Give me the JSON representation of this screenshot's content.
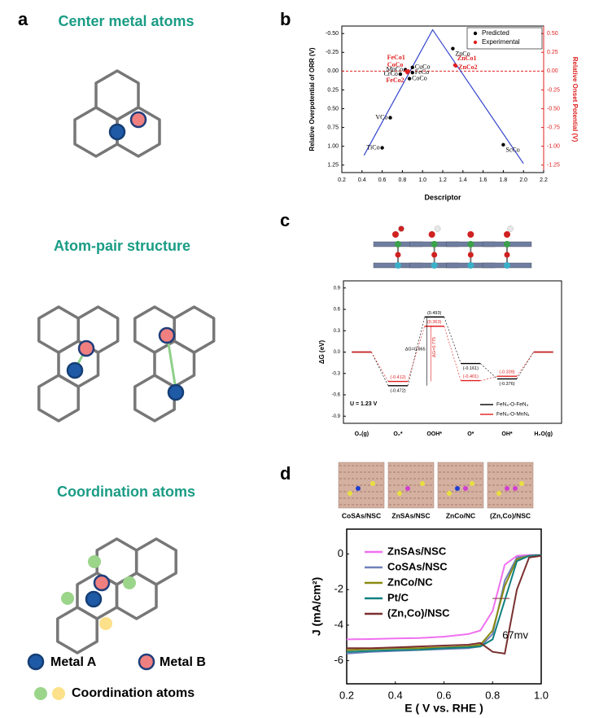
{
  "panel_labels": [
    "a",
    "b",
    "c",
    "d"
  ],
  "diagrams": {
    "titles": [
      "Center metal atoms",
      "Atom-pair structure",
      "Coordination atoms"
    ],
    "legend": [
      "Metal A",
      "Metal B",
      "Coordination atoms"
    ]
  },
  "chart_data": [
    {
      "type": "scatter",
      "xlabel": "Descriptor",
      "ylabel": "Relative Overpotential of ORR (V)",
      "y2label": "Relative Onset Potential (V)",
      "xlim": [
        0.2,
        2.2
      ],
      "xticks": [
        0.2,
        0.4,
        0.6,
        0.8,
        {
          "value": 1,
          "label": "1.0"
        },
        1.2,
        1.4,
        1.6,
        1.8,
        {
          "value": 2,
          "label": "2.0"
        },
        2.2
      ],
      "ylim": [
        1.35,
        -0.6
      ],
      "yticks": [
        {
          "value": -0.5,
          "label": "-0.50"
        },
        {
          "value": -0.25,
          "label": "-0.25"
        },
        {
          "value": 0,
          "label": "0.00"
        },
        {
          "value": 0.25,
          "label": "0.25"
        },
        {
          "value": 0.5,
          "label": "0.50"
        },
        {
          "value": 0.75,
          "label": "0.75"
        },
        {
          "value": 1,
          "label": "1.00"
        },
        {
          "value": 1.25,
          "label": "1.25"
        }
      ],
      "y2lim": [
        -1.35,
        0.6
      ],
      "y2ticks": [
        {
          "value": 0.5,
          "label": "0.50"
        },
        {
          "value": 0.25,
          "label": "0.25"
        },
        {
          "value": 0,
          "label": "0.00"
        },
        {
          "value": -0.25,
          "label": "-0.25"
        },
        {
          "value": -0.5,
          "label": "-0.50"
        },
        {
          "value": -0.75,
          "label": "-0.75"
        },
        {
          "value": -1,
          "label": "-1.00"
        },
        {
          "value": -1.25,
          "label": "-1.25"
        }
      ],
      "series": [
        {
          "name": "Predicted",
          "color": "#000000",
          "labels": [
            "TiCo",
            "VCo",
            "CrCo",
            "MnCo",
            "CoCo",
            "FeCo",
            "CuCo",
            "ZnCo",
            "ScCo"
          ],
          "x": [
            0.6,
            0.68,
            0.78,
            0.83,
            0.87,
            0.9,
            0.9,
            1.3,
            1.8
          ],
          "values": [
            1.02,
            0.62,
            0.04,
            -0.02,
            0.1,
            0.02,
            -0.05,
            -0.3,
            0.98
          ]
        },
        {
          "name": "Experimental",
          "color": "#e02020",
          "axis": "y2",
          "labels": [
            "FeCo1",
            "CoCo",
            "FeCo2",
            "ZnCo1",
            "ZnCo2"
          ],
          "x": [
            0.86,
            0.84,
            0.85,
            1.32,
            1.33
          ],
          "values": [
            0.0,
            0.0,
            -0.02,
            0.08,
            0.07
          ]
        }
      ],
      "volcano": {
        "color": "#3344cc",
        "x": [
          0.42,
          1.1,
          2.0
        ],
        "values": [
          1.12,
          -0.55,
          1.23
        ]
      },
      "reference_line": {
        "value": 0,
        "axis": "y2",
        "color": "#e02020"
      }
    },
    {
      "type": "energy",
      "ylabel": "ΔG (eV)",
      "categories": [
        "O₂(g)",
        "O₂*",
        "OOH*",
        "O*",
        "OH*",
        "H₂O(g)"
      ],
      "ylim": [
        -1,
        1
      ],
      "yticks": [
        0.9,
        0.6,
        0.3,
        {
          "value": 0,
          "label": "0.0"
        },
        -0.3,
        -0.6,
        -0.9
      ],
      "series": [
        {
          "name": "FeN₄-O-FeN₄",
          "color": "#000000",
          "values": [
            0,
            -0.472,
            0.493,
            -0.161,
            -0.376,
            0
          ],
          "value_labels": [
            null,
            "(-0.472)",
            "(0.493)",
            "(-0.161)",
            "(-0.376)",
            null
          ]
        },
        {
          "name": "FeN₄-O-MnN₄",
          "color": "#e02020",
          "values": [
            0,
            -0.412,
            0.363,
            -0.401,
            -0.339,
            0
          ],
          "value_labels": [
            null,
            "(-0.412)",
            "(0.363)",
            "(-0.401)",
            "(-0.339)",
            null
          ]
        }
      ],
      "annotations": [
        "ΔG=0.965",
        "ΔG=0.775",
        "U = 1.23 V"
      ]
    },
    {
      "type": "line",
      "xlabel": "E ( V vs. RHE )",
      "ylabel": "J (mA/cm²)",
      "xlim": [
        0.2,
        1.0
      ],
      "xticks": [
        0.2,
        0.4,
        0.6,
        0.8,
        {
          "value": 1,
          "label": "1.0"
        }
      ],
      "ylim": [
        -7.3,
        1.4
      ],
      "yticks": [
        0,
        -2,
        -4,
        -6
      ],
      "x": [
        0.2,
        0.3,
        0.4,
        0.5,
        0.6,
        0.7,
        0.75,
        0.8,
        0.85,
        0.9,
        0.95,
        1.0
      ],
      "series": [
        {
          "name": "ZnSAs/NSC",
          "color": "#f070f0",
          "values": [
            -4.8,
            -4.78,
            -4.75,
            -4.72,
            -4.65,
            -4.5,
            -4.3,
            -3.2,
            -0.6,
            -0.1,
            -0.05,
            -0.05
          ]
        },
        {
          "name": "CoSAs/NSC",
          "color": "#7080b8",
          "values": [
            -5.6,
            -5.5,
            -5.45,
            -5.4,
            -5.35,
            -5.3,
            -5.2,
            -4.5,
            -1.5,
            -0.2,
            -0.1,
            -0.05
          ]
        },
        {
          "name": "ZnCo/NC",
          "color": "#8a8a10",
          "values": [
            -5.4,
            -5.35,
            -5.3,
            -5.3,
            -5.25,
            -5.2,
            -5.1,
            -4.3,
            -1.8,
            -0.3,
            -0.1,
            -0.05
          ]
        },
        {
          "name": "Pt/C",
          "color": "#108080",
          "values": [
            -5.5,
            -5.45,
            -5.4,
            -5.38,
            -5.3,
            -5.25,
            -5.2,
            -4.8,
            -2.6,
            -0.4,
            -0.1,
            -0.05
          ]
        },
        {
          "name": "(Zn,Co)/NSC",
          "color": "#7a3030",
          "values": [
            -5.3,
            -5.3,
            -5.25,
            -5.2,
            -5.15,
            -5.1,
            -5.0,
            -5.5,
            -5.6,
            -2.0,
            -0.2,
            -0.1
          ]
        }
      ],
      "annotation": "67mv",
      "structures": [
        "CoSAs/NSC",
        "ZnSAs/NSC",
        "ZnCo/NC",
        "(Zn,Co)/NSC"
      ]
    }
  ]
}
